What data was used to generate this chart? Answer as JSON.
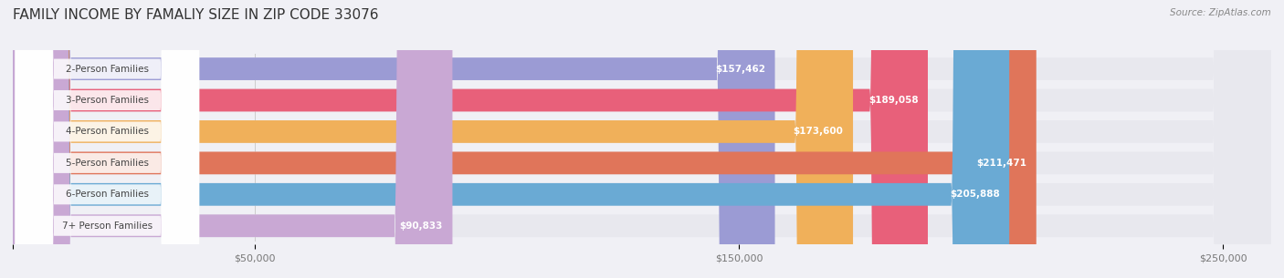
{
  "title": "FAMILY INCOME BY FAMALIY SIZE IN ZIP CODE 33076",
  "source": "Source: ZipAtlas.com",
  "categories": [
    "2-Person Families",
    "3-Person Families",
    "4-Person Families",
    "5-Person Families",
    "6-Person Families",
    "7+ Person Families"
  ],
  "values": [
    157462,
    189058,
    173600,
    211471,
    205888,
    90833
  ],
  "bar_colors": [
    "#9b9bd4",
    "#e8607a",
    "#f0b05a",
    "#e0755a",
    "#6aaad4",
    "#c9a8d4"
  ],
  "value_labels": [
    "$157,462",
    "$189,058",
    "$173,600",
    "$211,471",
    "$205,888",
    "$90,833"
  ],
  "xlim": [
    0,
    260000
  ],
  "xticks": [
    0,
    50000,
    150000,
    250000
  ],
  "xticklabels": [
    "",
    "$50,000",
    "$150,000",
    "$250,000"
  ],
  "background_color": "#f0f0f5",
  "bar_bg_color": "#e8e8ee",
  "title_fontsize": 11,
  "label_fontsize": 7.5,
  "value_fontsize": 7.5,
  "bar_height": 0.72,
  "fig_width": 14.06,
  "fig_height": 3.05
}
